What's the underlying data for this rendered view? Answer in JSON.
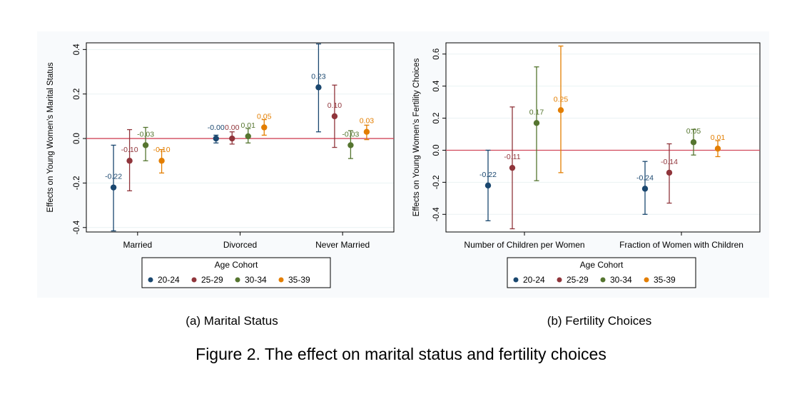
{
  "figure_title": "Figure 2. The effect on marital status and fertility choices",
  "chart_data": [
    {
      "type": "scatter",
      "panel_caption": "(a) Marital Status",
      "ylabel": "Effects on Young Women's Marital Status",
      "ylim": [
        -0.42,
        0.43
      ],
      "yticks": [
        -0.4,
        -0.2,
        0.0,
        0.2,
        0.4
      ],
      "ytick_labels": [
        "-0.4",
        "-0.2",
        "0.0",
        "0.2",
        "0.4"
      ],
      "categories": [
        "Married",
        "Divorced",
        "Never Married"
      ],
      "reference_line": 0,
      "legend_title": "Age Cohort",
      "legend_position": "bottom",
      "series": [
        {
          "name": "20-24",
          "color": "#1a476f",
          "values": [
            -0.22,
            -0.0,
            0.23
          ],
          "labels": [
            "-0.22",
            "-0.00",
            "0.23"
          ],
          "ci_low": [
            -0.415,
            -0.02,
            0.03
          ],
          "ci_high": [
            -0.03,
            0.015,
            0.425
          ]
        },
        {
          "name": "25-29",
          "color": "#90353b",
          "values": [
            -0.1,
            0.0,
            0.1
          ],
          "labels": [
            "-0.10",
            "0.00",
            "0.10"
          ],
          "ci_low": [
            -0.235,
            -0.025,
            -0.04
          ],
          "ci_high": [
            0.04,
            0.03,
            0.24
          ]
        },
        {
          "name": "30-34",
          "color": "#55752f",
          "values": [
            -0.03,
            0.01,
            -0.03
          ],
          "labels": [
            "-0.03",
            "0.01",
            "-0.03"
          ],
          "ci_low": [
            -0.1,
            -0.02,
            -0.09
          ],
          "ci_high": [
            0.05,
            0.045,
            0.035
          ]
        },
        {
          "name": "35-39",
          "color": "#e37e00",
          "values": [
            -0.1,
            0.05,
            0.03
          ],
          "labels": [
            "-0.10",
            "0.05",
            "0.03"
          ],
          "ci_low": [
            -0.155,
            0.015,
            -0.005
          ],
          "ci_high": [
            -0.05,
            0.085,
            0.06
          ]
        }
      ]
    },
    {
      "type": "scatter",
      "panel_caption": "(b) Fertility Choices",
      "ylabel": "Effects on Young Women's Fertility Choices",
      "ylim": [
        -0.51,
        0.67
      ],
      "yticks": [
        -0.4,
        -0.2,
        0.0,
        0.2,
        0.4,
        0.6
      ],
      "ytick_labels": [
        "-0.4",
        "-0.2",
        "0.0",
        "0.2",
        "0.4",
        "0.6"
      ],
      "categories": [
        "Number of Children per Women",
        "Fraction of Women with Children"
      ],
      "reference_line": 0,
      "legend_title": "Age Cohort",
      "legend_position": "bottom",
      "series": [
        {
          "name": "20-24",
          "color": "#1a476f",
          "values": [
            -0.22,
            -0.24
          ],
          "labels": [
            "-0.22",
            "-0.24"
          ],
          "ci_low": [
            -0.44,
            -0.4
          ],
          "ci_high": [
            0.0,
            -0.07
          ]
        },
        {
          "name": "25-29",
          "color": "#90353b",
          "values": [
            -0.11,
            -0.14
          ],
          "labels": [
            "-0.11",
            "-0.14"
          ],
          "ci_low": [
            -0.49,
            -0.33
          ],
          "ci_high": [
            0.27,
            0.04
          ]
        },
        {
          "name": "30-34",
          "color": "#55752f",
          "values": [
            0.17,
            0.05
          ],
          "labels": [
            "0.17",
            "0.05"
          ],
          "ci_low": [
            -0.19,
            -0.03
          ],
          "ci_high": [
            0.52,
            0.13
          ]
        },
        {
          "name": "35-39",
          "color": "#e37e00",
          "values": [
            0.25,
            0.01
          ],
          "labels": [
            "0.25",
            "0.01"
          ],
          "ci_low": [
            -0.14,
            -0.04
          ],
          "ci_high": [
            0.65,
            0.06
          ]
        }
      ]
    }
  ]
}
